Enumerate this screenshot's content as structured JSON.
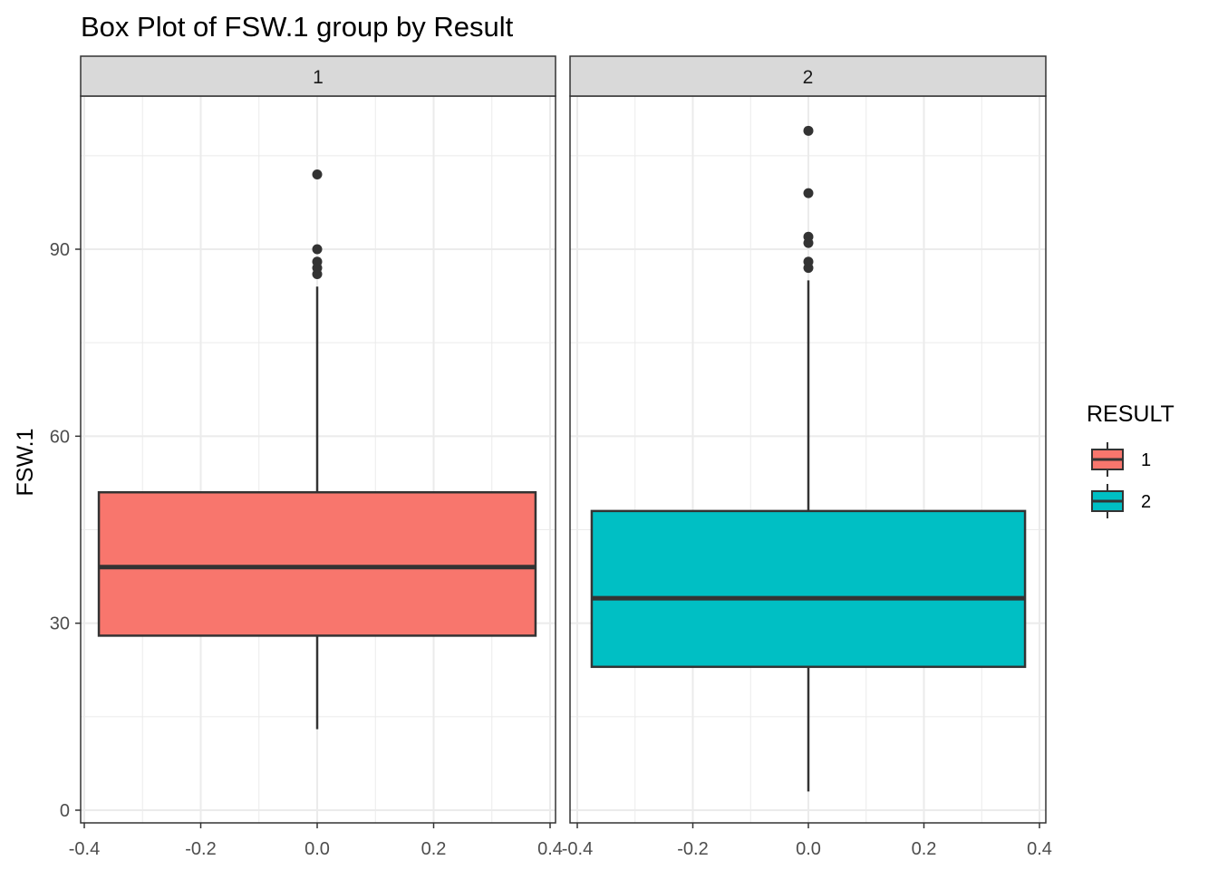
{
  "chart_data": {
    "type": "box",
    "title": "Box Plot of FSW.1 group by Result",
    "xlabel": "",
    "ylabel": "FSW.1",
    "xlim": [
      -0.4,
      0.4
    ],
    "ylim": [
      0,
      110
    ],
    "x_ticks": [
      -0.4,
      -0.2,
      0.0,
      0.2,
      0.4
    ],
    "x_tick_labels": [
      "-0.4",
      "-0.2",
      "0.0",
      "0.2",
      "0.4"
    ],
    "y_ticks": [
      0,
      30,
      60,
      90
    ],
    "y_tick_labels": [
      "0",
      "30",
      "60",
      "90"
    ],
    "grid": true,
    "legend": {
      "title": "RESULT",
      "position": "right"
    },
    "panels": [
      {
        "strip_label": "1",
        "name": "1",
        "color": "#F8766D",
        "box": {
          "x_center": 0.0,
          "x_half_width": 0.375,
          "min": 13,
          "q1": 28,
          "median": 39,
          "q3": 51,
          "max": 84
        },
        "outliers": [
          86,
          87,
          88,
          90,
          102
        ]
      },
      {
        "strip_label": "2",
        "name": "2",
        "color": "#00BFC4",
        "box": {
          "x_center": 0.0,
          "x_half_width": 0.375,
          "min": 3,
          "q1": 23,
          "median": 34,
          "q3": 48,
          "max": 85
        },
        "outliers": [
          87,
          88,
          91,
          92,
          99,
          109
        ]
      }
    ]
  }
}
